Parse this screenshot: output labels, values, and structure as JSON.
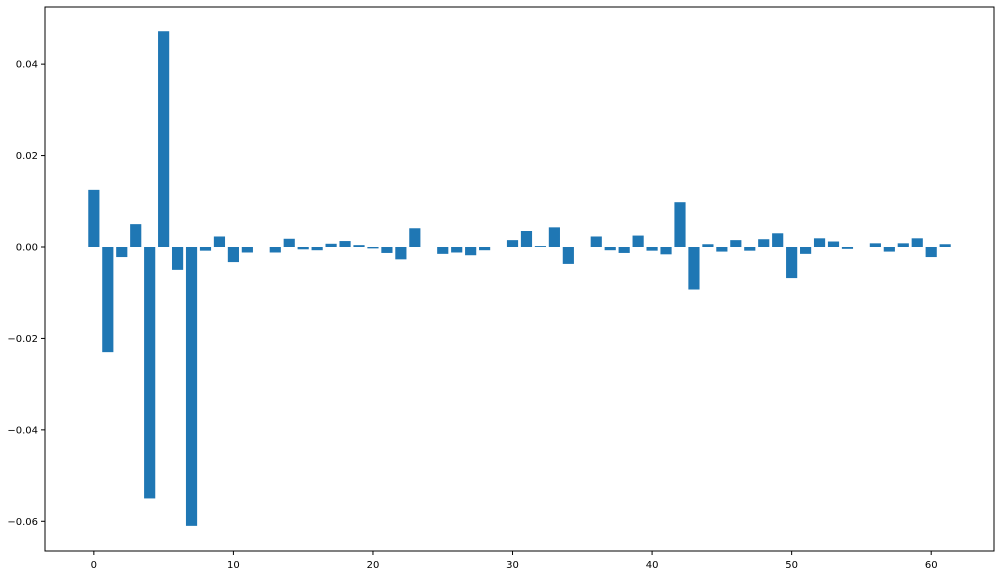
{
  "chart_data": {
    "type": "bar",
    "title": "",
    "xlabel": "",
    "ylabel": "",
    "x": [
      0,
      1,
      2,
      3,
      4,
      5,
      6,
      7,
      8,
      9,
      10,
      11,
      12,
      13,
      14,
      15,
      16,
      17,
      18,
      19,
      20,
      21,
      22,
      23,
      24,
      25,
      26,
      27,
      28,
      29,
      30,
      31,
      32,
      33,
      34,
      35,
      36,
      37,
      38,
      39,
      40,
      41,
      42,
      43,
      44,
      45,
      46,
      47,
      48,
      49,
      50,
      51,
      52,
      53,
      54,
      55,
      56,
      57,
      58,
      59,
      60,
      61
    ],
    "values": [
      0.0125,
      -0.023,
      -0.0022,
      0.005,
      -0.055,
      0.0472,
      -0.005,
      -0.061,
      -0.0008,
      0.0023,
      -0.0033,
      -0.0012,
      0.0,
      -0.0012,
      0.0018,
      -0.0005,
      -0.0007,
      0.0007,
      0.0013,
      0.0004,
      -0.0003,
      -0.0013,
      -0.0027,
      0.0041,
      0.0,
      -0.0015,
      -0.0012,
      -0.0018,
      -0.0007,
      0.0,
      0.0015,
      0.0035,
      0.0002,
      0.0043,
      -0.0037,
      0.0,
      0.0023,
      -0.0007,
      -0.0013,
      0.0025,
      -0.0008,
      -0.0016,
      0.0098,
      -0.0093,
      0.0006,
      -0.001,
      0.0015,
      -0.0008,
      0.0017,
      0.003,
      -0.0068,
      -0.0015,
      0.0019,
      0.0012,
      -0.0004,
      0.0,
      0.0008,
      -0.001,
      0.0008,
      0.0019,
      -0.0022,
      0.0006
    ],
    "color": "#1f77b4",
    "xlim": [
      -3.5,
      64.5
    ],
    "ylim": [
      -0.0665,
      0.0525
    ],
    "xticks": [
      0,
      10,
      20,
      30,
      40,
      50,
      60
    ],
    "xtick_labels": [
      "0",
      "10",
      "20",
      "30",
      "40",
      "50",
      "60"
    ],
    "yticks": [
      -0.06,
      -0.04,
      -0.02,
      0.0,
      0.02,
      0.04
    ],
    "ytick_labels": [
      "−0.06",
      "−0.04",
      "−0.02",
      "0.00",
      "0.02",
      "0.04"
    ],
    "grid": false,
    "legend": "none"
  }
}
